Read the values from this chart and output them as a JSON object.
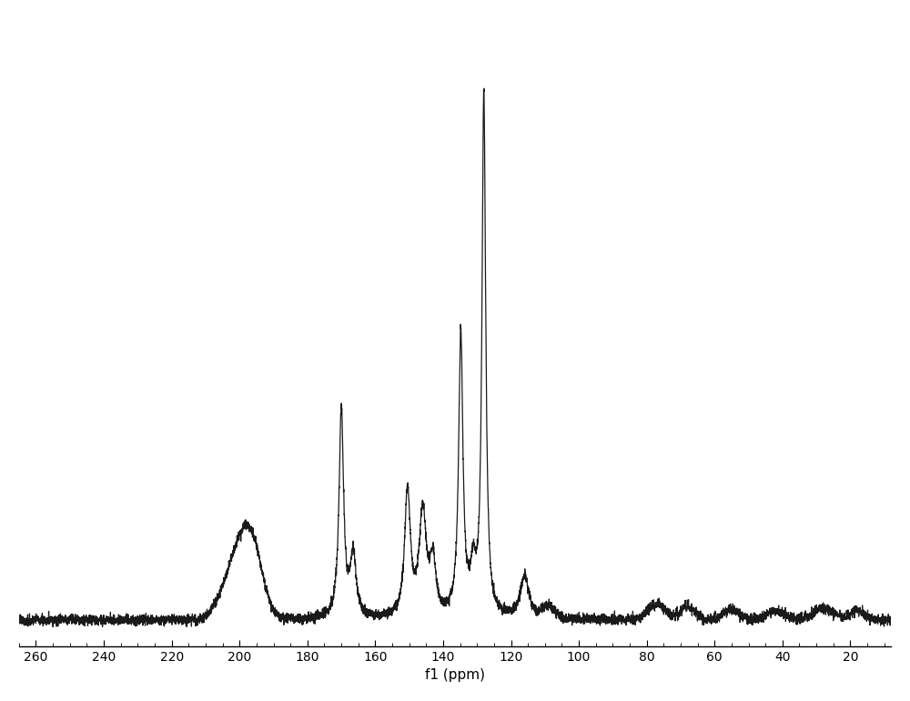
{
  "xlabel": "f1 (ppm)",
  "ylabel": "",
  "xlim": [
    265,
    8
  ],
  "ylim": [
    -0.05,
    1.15
  ],
  "background_color": "#ffffff",
  "line_color": "#1a1a1a",
  "line_width": 0.9,
  "tick_positions": [
    260,
    240,
    220,
    200,
    180,
    160,
    140,
    120,
    100,
    80,
    60,
    40,
    20
  ],
  "figsize": [
    10,
    7.7
  ],
  "dpi": 100,
  "noise_amplitude": 0.008,
  "noise_seed": 12,
  "baseline": 0.0
}
